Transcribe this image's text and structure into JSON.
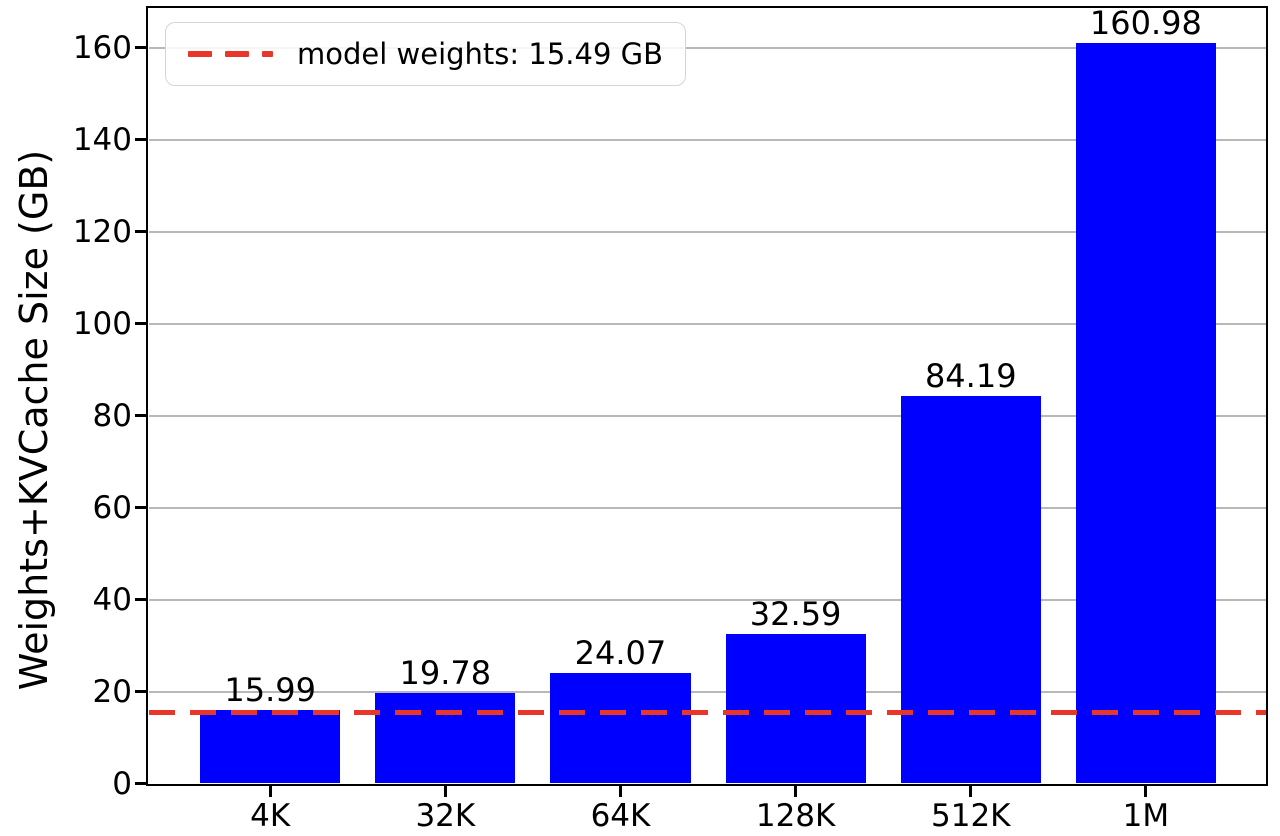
{
  "figure": {
    "background": "#ffffff",
    "axis_color": "#000000",
    "grid_color": "#b8b8b8"
  },
  "chart_data": {
    "type": "bar",
    "title": "",
    "xlabel": "",
    "ylabel": "Weights+KVCache Size (GB)",
    "categories": [
      "4K",
      "32K",
      "64K",
      "128K",
      "512K",
      "1M"
    ],
    "values": [
      15.99,
      19.78,
      24.07,
      32.59,
      84.19,
      160.98
    ],
    "bar_value_labels": [
      "15.99",
      "19.78",
      "24.07",
      "32.59",
      "84.19",
      "160.98"
    ],
    "bar_color": "#0000ff",
    "ylim": [
      0,
      168.5
    ],
    "yticks": [
      0,
      20,
      40,
      60,
      80,
      100,
      120,
      140,
      160
    ],
    "ytick_labels": [
      "0",
      "20",
      "40",
      "60",
      "80",
      "100",
      "120",
      "140",
      "160"
    ],
    "grid": "y",
    "legend_position": "upper left",
    "threshold_line": {
      "value": 15.49,
      "label": "model weights: 15.49 GB",
      "color": "#e8362a",
      "style": "dashed"
    }
  }
}
